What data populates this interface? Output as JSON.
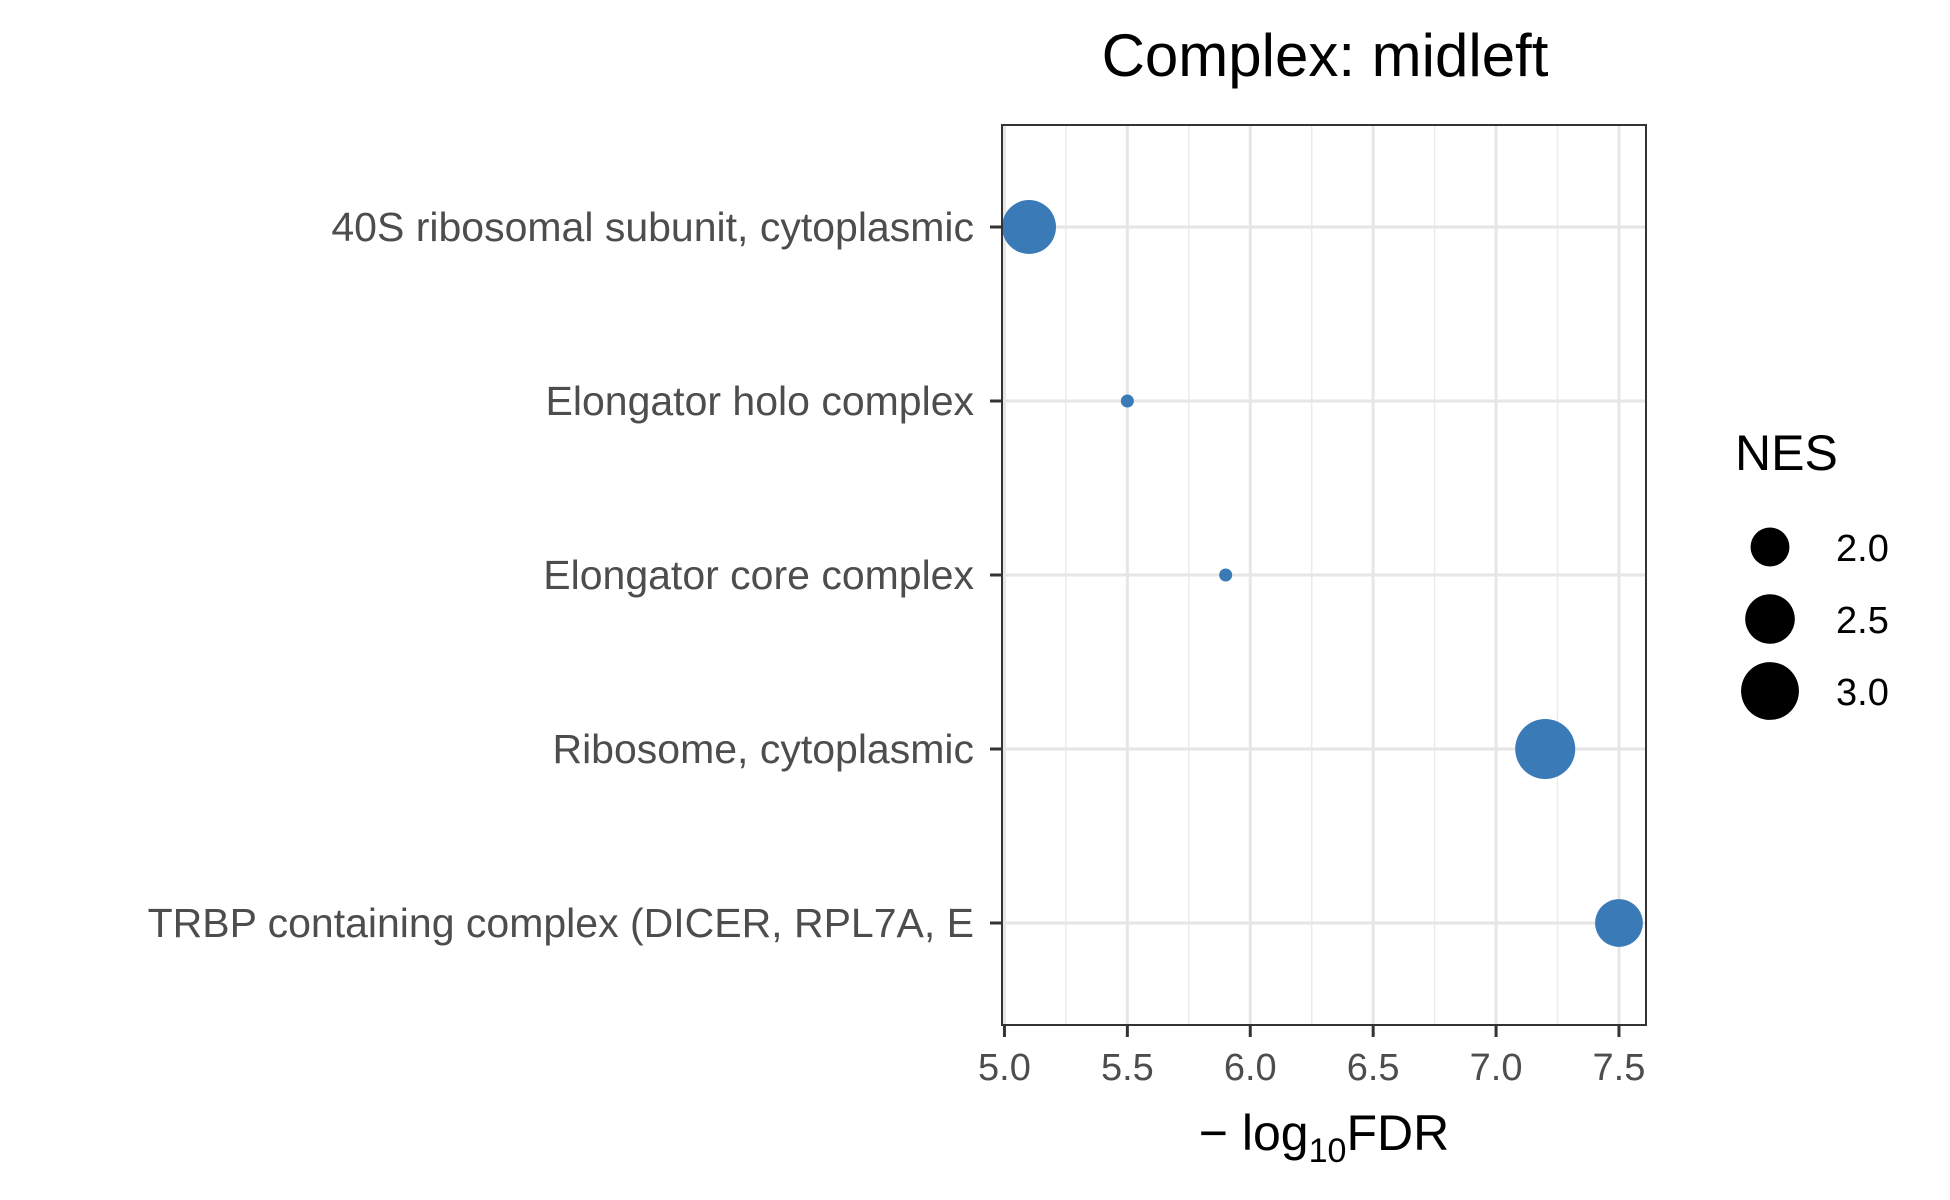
{
  "chart_data": {
    "type": "scatter",
    "title": "Complex: midleft",
    "xlabel_prefix": "− log",
    "xlabel_subscript": "10",
    "xlabel_suffix": "FDR",
    "xlim": [
      4.99,
      7.61
    ],
    "x_ticks": [
      5.0,
      5.5,
      6.0,
      6.5,
      7.0,
      7.5
    ],
    "x_tick_labels": [
      "5.0",
      "5.5",
      "6.0",
      "6.5",
      "7.0",
      "7.5"
    ],
    "grid": true,
    "point_color": "#3a7ab7",
    "categories": [
      "40S ribosomal subunit, cytoplasmic",
      "Elongator holo complex",
      "Elongator core complex",
      "Ribosome, cytoplasmic",
      "TRBP containing complex (DICER, RPL7A, E"
    ],
    "points": [
      {
        "category": "40S ribosomal subunit, cytoplasmic",
        "x": 5.1,
        "nes": 2.75
      },
      {
        "category": "Elongator holo complex",
        "x": 5.5,
        "nes": 1.5
      },
      {
        "category": "Elongator core complex",
        "x": 5.9,
        "nes": 1.5
      },
      {
        "category": "Ribosome, cytoplasmic",
        "x": 7.2,
        "nes": 3.15
      },
      {
        "category": "TRBP containing complex (DICER, RPL7A, E",
        "x": 7.5,
        "nes": 2.4
      }
    ],
    "size_legend": {
      "title": "NES",
      "position": "right",
      "color": "#000000",
      "entries": [
        {
          "value": 2.0,
          "label": "2.0"
        },
        {
          "value": 2.5,
          "label": "2.5"
        },
        {
          "value": 3.0,
          "label": "3.0"
        }
      ]
    }
  }
}
